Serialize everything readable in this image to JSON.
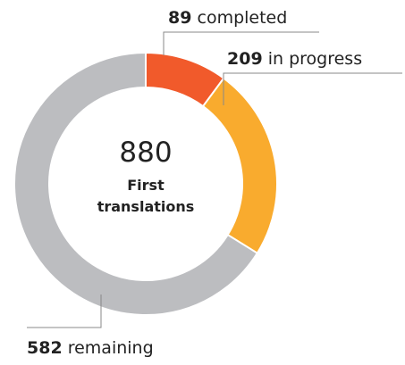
{
  "chart_data": {
    "type": "donut",
    "total": 880,
    "center_label": "First translations",
    "categories": [
      "completed",
      "in progress",
      "remaining"
    ],
    "values": [
      89,
      209,
      582
    ],
    "colors": [
      "#f15a2b",
      "#f9ab2e",
      "#bcbdc0"
    ]
  }
}
